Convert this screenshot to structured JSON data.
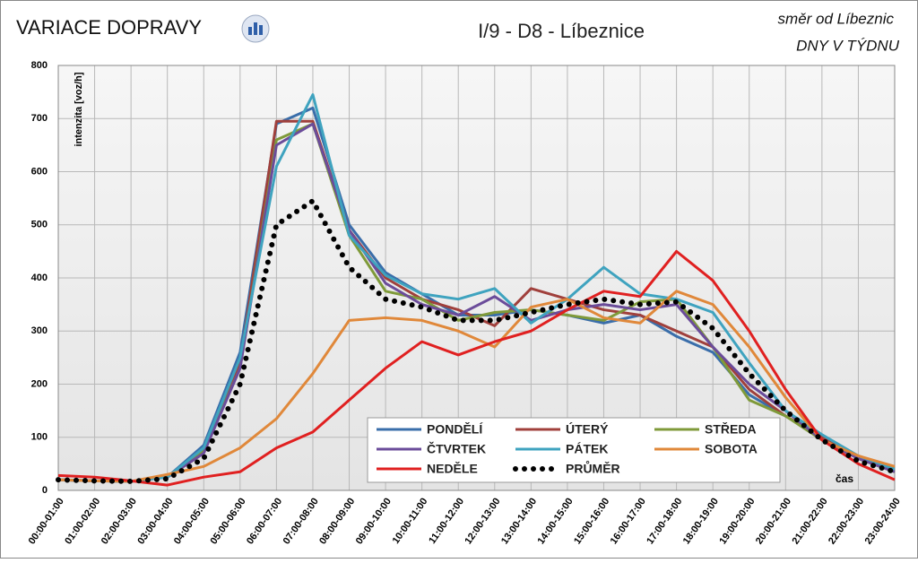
{
  "chart_data": {
    "type": "line",
    "title": "VARIACE DOPRAVY",
    "subtitle": "I/9 - D8 - Líbeznice",
    "direction": "směr od Líbeznic",
    "variant": "DNY V TÝDNU",
    "y_label": "intenzita [voz/h]",
    "x_label": "čas",
    "categories": [
      "00:00-01:00",
      "01:00-02:00",
      "02:00-03:00",
      "03:00-04:00",
      "04:00-05:00",
      "05:00-06:00",
      "06:00-07:00",
      "07:00-08:00",
      "08:00-09:00",
      "09:00-10:00",
      "10:00-11:00",
      "11:00-12:00",
      "12:00-13:00",
      "13:00-14:00",
      "14:00-15:00",
      "15:00-16:00",
      "16:00-17:00",
      "17:00-18:00",
      "18:00-19:00",
      "19:00-20:00",
      "20:00-21:00",
      "21:00-22:00",
      "22:00-23:00",
      "23:00-24:00"
    ],
    "series": [
      {
        "name": "PONDĚLÍ",
        "color": "#3a6eaa",
        "values": [
          20,
          18,
          17,
          25,
          85,
          260,
          690,
          720,
          500,
          410,
          370,
          330,
          330,
          340,
          330,
          315,
          330,
          290,
          260,
          180,
          140,
          100,
          60,
          35
        ]
      },
      {
        "name": "ÚTERÝ",
        "color": "#a0403c",
        "values": [
          20,
          18,
          17,
          25,
          70,
          240,
          695,
          695,
          490,
          400,
          360,
          340,
          310,
          380,
          360,
          340,
          330,
          300,
          270,
          190,
          140,
          100,
          60,
          35
        ]
      },
      {
        "name": "STŘEDA",
        "color": "#7f9a3a",
        "values": [
          20,
          18,
          17,
          25,
          75,
          230,
          660,
          690,
          480,
          375,
          360,
          320,
          335,
          340,
          330,
          320,
          355,
          360,
          270,
          170,
          140,
          95,
          60,
          35
        ]
      },
      {
        "name": "ČTVRTEK",
        "color": "#6b4c9a",
        "values": [
          20,
          18,
          17,
          25,
          70,
          230,
          650,
          690,
          490,
          390,
          350,
          330,
          365,
          320,
          340,
          350,
          340,
          350,
          270,
          200,
          150,
          95,
          60,
          35
        ]
      },
      {
        "name": "PÁTEK",
        "color": "#3fa3bf",
        "values": [
          20,
          18,
          17,
          25,
          80,
          250,
          610,
          745,
          480,
          405,
          370,
          360,
          380,
          315,
          360,
          420,
          370,
          360,
          335,
          240,
          150,
          105,
          65,
          40
        ]
      },
      {
        "name": "SOBOTA",
        "color": "#e0883a",
        "values": [
          20,
          18,
          17,
          30,
          45,
          80,
          135,
          220,
          320,
          325,
          320,
          300,
          270,
          345,
          360,
          325,
          315,
          375,
          350,
          270,
          175,
          95,
          65,
          45
        ]
      },
      {
        "name": "NEDĚLE",
        "color": "#e02020",
        "values": [
          28,
          25,
          18,
          10,
          25,
          35,
          80,
          110,
          170,
          230,
          280,
          255,
          280,
          300,
          340,
          375,
          365,
          450,
          395,
          300,
          190,
          95,
          50,
          20
        ]
      },
      {
        "name": "PRŮMĚR",
        "color": "#000000",
        "dotted": true,
        "values": [
          20,
          18,
          17,
          22,
          60,
          200,
          500,
          545,
          420,
          360,
          345,
          320,
          320,
          335,
          350,
          360,
          350,
          355,
          305,
          220,
          150,
          95,
          55,
          35
        ]
      }
    ],
    "ylim": [
      0,
      800
    ],
    "yticks": [
      0,
      100,
      200,
      300,
      400,
      500,
      600,
      700,
      800
    ],
    "grid": true
  }
}
